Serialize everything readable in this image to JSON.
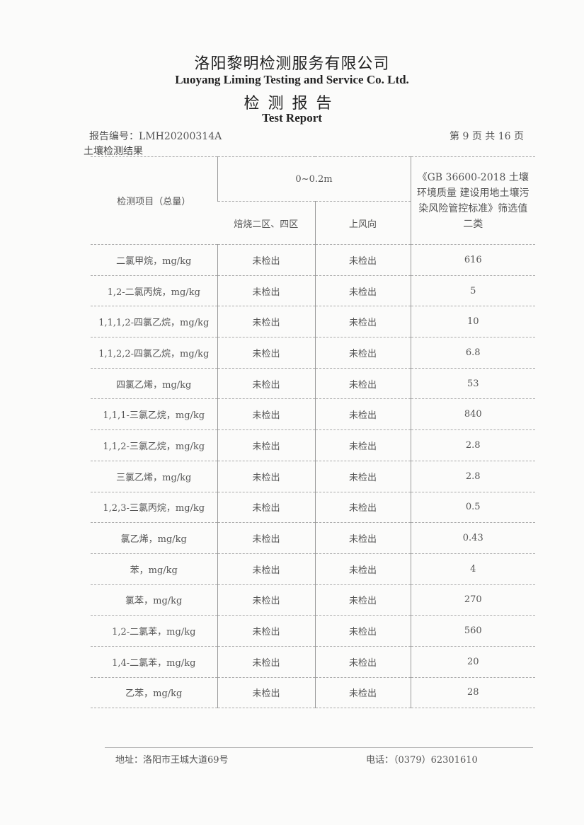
{
  "header": {
    "company_cn": "洛阳黎明检测服务有限公司",
    "company_en": "Luoyang Liming Testing and Service Co. Ltd.",
    "report_cn": "检测报告",
    "report_en": "Test Report",
    "report_no": "报告编号：LMH20200314A",
    "page_info": "第 9 页 共 16 页",
    "section": "土壤检测结果"
  },
  "table": {
    "col_item": "检测项目（总量）",
    "depth": "0~0.2m",
    "col_site1": "焙烧二区、四区",
    "col_site2": "上风向",
    "col_standard": "《GB 36600-2018 土壤环境质量 建设用地土壤污染风险管控标准》筛选值二类",
    "rows": [
      {
        "item": "二氯甲烷，mg/kg",
        "a": "未检出",
        "b": "未检出",
        "std": "616"
      },
      {
        "item": "1,2-二氯丙烷，mg/kg",
        "a": "未检出",
        "b": "未检出",
        "std": "5"
      },
      {
        "item": "1,1,1,2-四氯乙烷，mg/kg",
        "a": "未检出",
        "b": "未检出",
        "std": "10"
      },
      {
        "item": "1,1,2,2-四氯乙烷，mg/kg",
        "a": "未检出",
        "b": "未检出",
        "std": "6.8"
      },
      {
        "item": "四氯乙烯，mg/kg",
        "a": "未检出",
        "b": "未检出",
        "std": "53"
      },
      {
        "item": "1,1,1-三氯乙烷，mg/kg",
        "a": "未检出",
        "b": "未检出",
        "std": "840"
      },
      {
        "item": "1,1,2-三氯乙烷，mg/kg",
        "a": "未检出",
        "b": "未检出",
        "std": "2.8"
      },
      {
        "item": "三氯乙烯，mg/kg",
        "a": "未检出",
        "b": "未检出",
        "std": "2.8"
      },
      {
        "item": "1,2,3-三氯丙烷，mg/kg",
        "a": "未检出",
        "b": "未检出",
        "std": "0.5"
      },
      {
        "item": "氯乙烯，mg/kg",
        "a": "未检出",
        "b": "未检出",
        "std": "0.43"
      },
      {
        "item": "苯，mg/kg",
        "a": "未检出",
        "b": "未检出",
        "std": "4"
      },
      {
        "item": "氯苯，mg/kg",
        "a": "未检出",
        "b": "未检出",
        "std": "270"
      },
      {
        "item": "1,2-二氯苯，mg/kg",
        "a": "未检出",
        "b": "未检出",
        "std": "560"
      },
      {
        "item": "1,4-二氯苯，mg/kg",
        "a": "未检出",
        "b": "未检出",
        "std": "20"
      },
      {
        "item": "乙苯，mg/kg",
        "a": "未检出",
        "b": "未检出",
        "std": "28"
      }
    ]
  },
  "footer": {
    "address": "地址：洛阳市王城大道69号",
    "phone": "电话：（0379）62301610"
  }
}
